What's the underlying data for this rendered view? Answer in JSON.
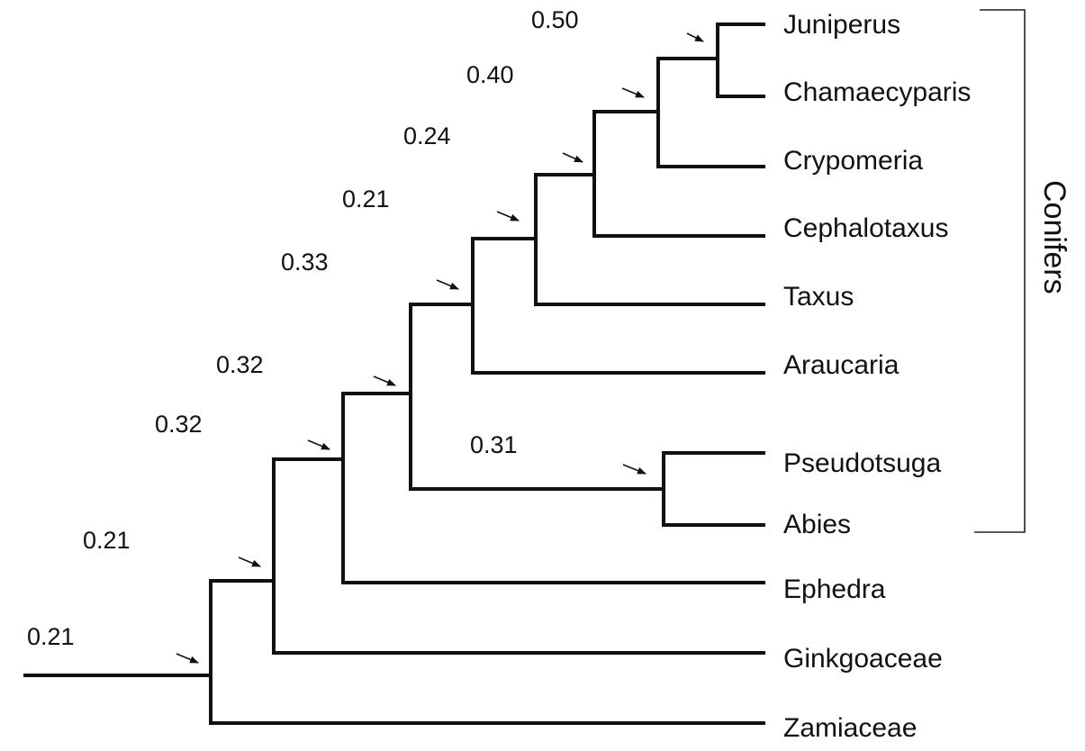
{
  "taxa": [
    "Juniperus",
    "Chamaecyparis",
    "Crypomeria",
    "Cephalotaxus",
    "Taxus",
    "Araucaria",
    "Pseudotsuga",
    "Abies",
    "Ephedra",
    "Ginkgoaceae",
    "Zamiaceae"
  ],
  "group_label": "Conifers",
  "node_values": [
    "0.50",
    "0.40",
    "0.24",
    "0.21",
    "0.33",
    "0.32",
    "0.32",
    "0.31",
    "0.21",
    "0.21"
  ]
}
